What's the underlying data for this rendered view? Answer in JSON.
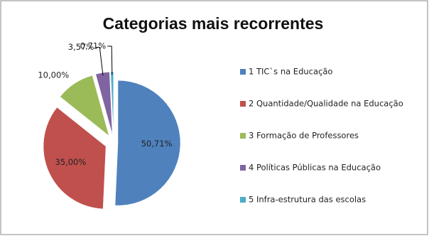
{
  "chart_data": {
    "type": "pie",
    "title": "Categorias mais recorrentes",
    "categories": [
      "1 TIC`s na Educação",
      "2 Quantidade/Qualidade na Educação",
      "3 Formação de Professores",
      "4 Políticas Públicas na Educação",
      "5 Infra-estrutura  das escolas"
    ],
    "values": [
      50.71,
      35.0,
      10.0,
      3.57,
      0.71
    ],
    "value_labels": [
      "50,71%",
      "35,00%",
      "10,00%",
      "3,57%",
      "0,71%"
    ],
    "colors": [
      "#4f81bd",
      "#c0504d",
      "#9bbb59",
      "#8064a2",
      "#4bacc6"
    ],
    "legend": "right"
  }
}
